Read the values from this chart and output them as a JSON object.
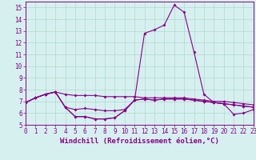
{
  "xlabel": "Windchill (Refroidissement éolien,°C)",
  "x_values": [
    0,
    1,
    2,
    3,
    4,
    5,
    6,
    7,
    8,
    9,
    10,
    11,
    12,
    13,
    14,
    15,
    16,
    17,
    18,
    19,
    20,
    21,
    22,
    23
  ],
  "line1": [
    6.9,
    7.3,
    7.6,
    7.8,
    6.5,
    5.7,
    5.7,
    5.5,
    5.5,
    5.6,
    6.2,
    7.1,
    7.2,
    7.1,
    7.2,
    7.2,
    7.2,
    7.1,
    7.0,
    6.9,
    6.8,
    6.7,
    6.6,
    6.5
  ],
  "line2": [
    6.9,
    7.3,
    7.6,
    7.8,
    6.5,
    5.7,
    5.7,
    5.5,
    5.5,
    5.6,
    6.2,
    7.1,
    12.8,
    13.1,
    13.5,
    15.2,
    14.6,
    11.2,
    7.6,
    6.9,
    6.8,
    5.9,
    6.0,
    6.3
  ],
  "line3": [
    6.9,
    7.3,
    7.6,
    7.8,
    6.5,
    6.3,
    6.4,
    6.3,
    6.2,
    6.2,
    6.3,
    7.1,
    7.2,
    7.1,
    7.2,
    7.2,
    7.2,
    7.1,
    7.0,
    6.9,
    6.8,
    6.7,
    6.6,
    6.5
  ],
  "line4": [
    6.9,
    7.3,
    7.6,
    7.8,
    7.6,
    7.5,
    7.5,
    7.5,
    7.4,
    7.4,
    7.4,
    7.4,
    7.3,
    7.3,
    7.3,
    7.3,
    7.3,
    7.2,
    7.1,
    7.0,
    7.0,
    6.9,
    6.8,
    6.7
  ],
  "xlim": [
    0,
    23
  ],
  "ylim": [
    5,
    15.5
  ],
  "yticks": [
    5,
    6,
    7,
    8,
    9,
    10,
    11,
    12,
    13,
    14,
    15
  ],
  "bg_color": "#d6f0f0",
  "line_color": "#880088",
  "grid_color": "#b0d8cc",
  "tick_fontsize": 5.5,
  "xlabel_fontsize": 6.5
}
